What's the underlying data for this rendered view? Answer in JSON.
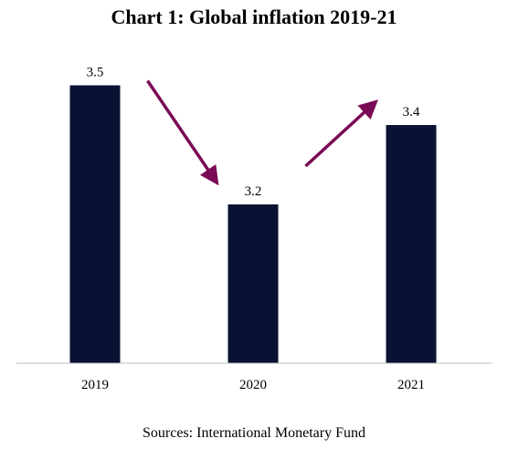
{
  "chart_data": {
    "type": "bar",
    "title": "Chart 1: Global inflation 2019-21",
    "categories": [
      "2019",
      "2020",
      "2021"
    ],
    "values": [
      3.5,
      3.2,
      3.4
    ],
    "data_labels": [
      "3.5",
      "3.2",
      "3.4"
    ],
    "xlabel": "",
    "ylabel": "",
    "ylim": [
      2.8,
      3.6
    ],
    "grid": false,
    "legend": "none",
    "bar_color": "#0a1233",
    "arrow_color": "#7a0a55",
    "annotations": [
      {
        "type": "arrow",
        "direction": "down",
        "from_category": "2019",
        "to_category": "2020"
      },
      {
        "type": "arrow",
        "direction": "up",
        "from_category": "2020",
        "to_category": "2021"
      }
    ]
  },
  "source": "Sources: International Monetary Fund"
}
